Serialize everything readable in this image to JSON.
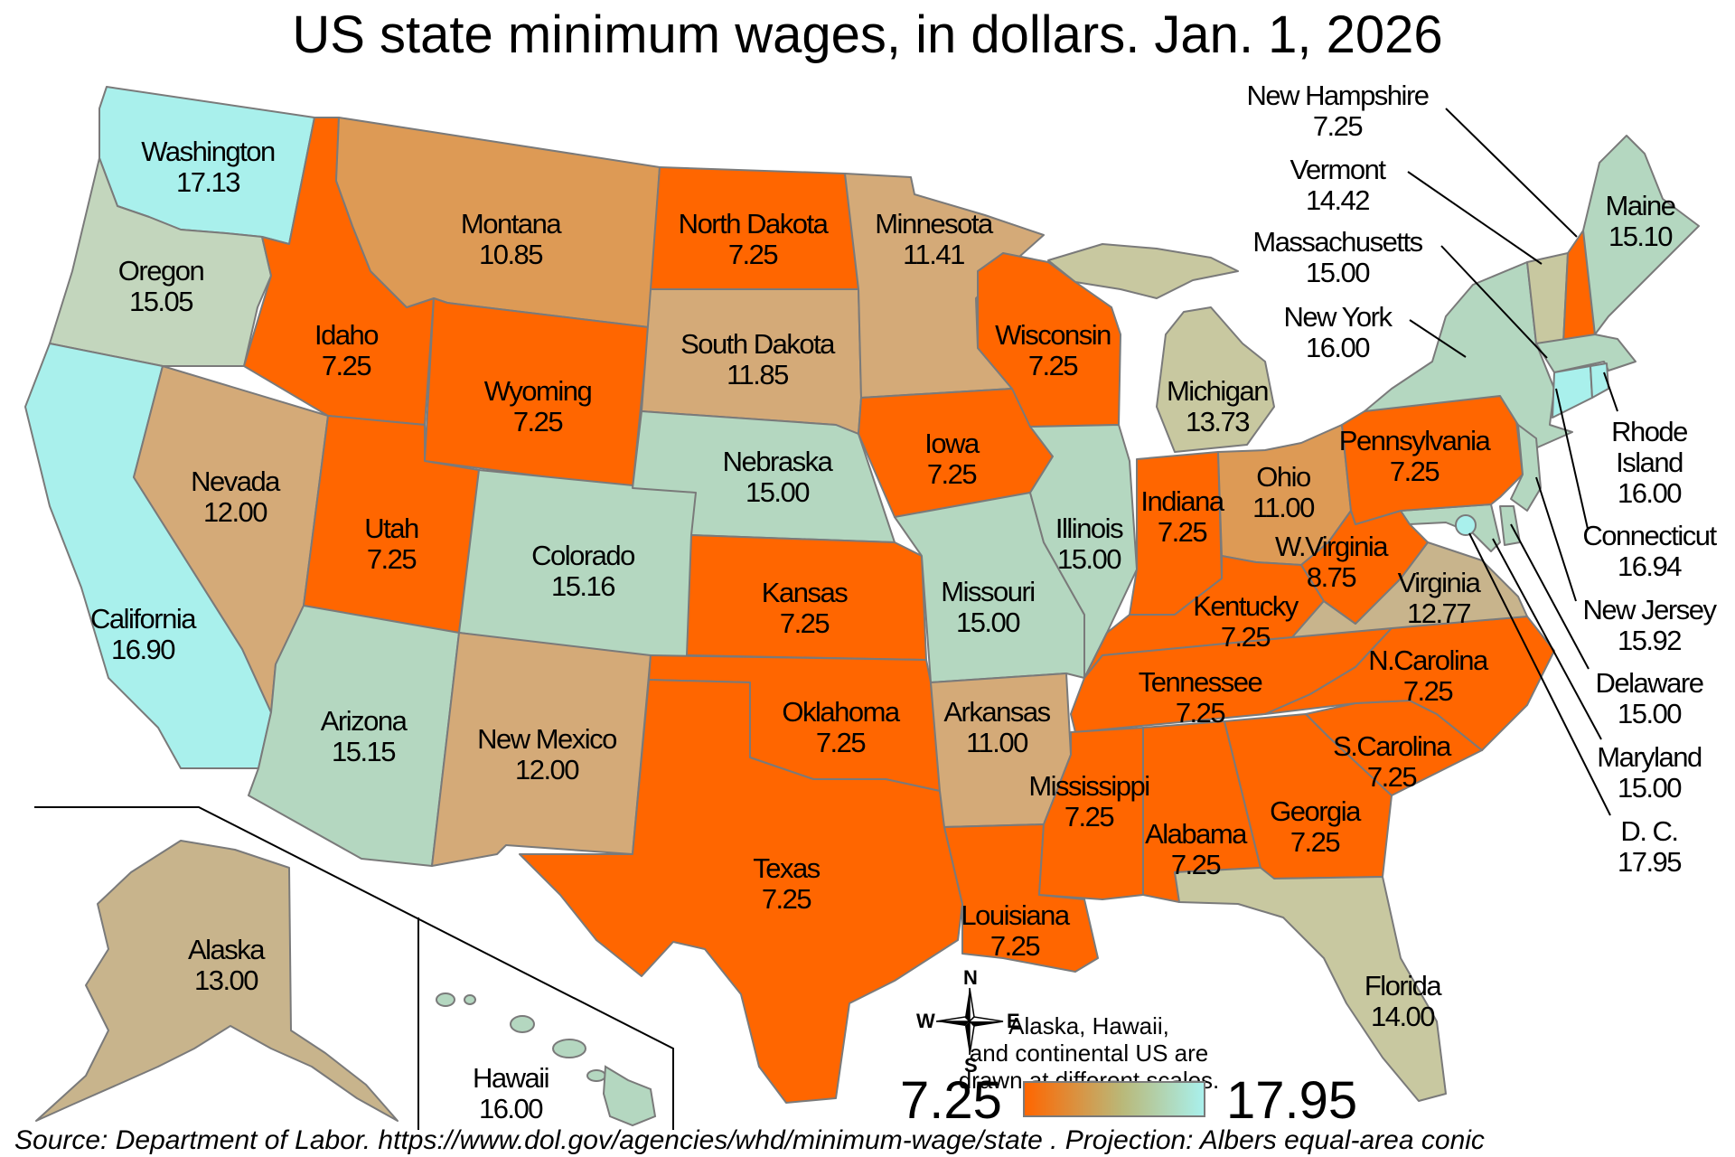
{
  "title": "US state minimum wages, in dollars. Jan. 1, 2026",
  "colors": {
    "federal_minimum": "#ff6600",
    "tier_low": "#dd9a55",
    "tier_mid": "#d4aa78",
    "tier_tan": "#c8b48c",
    "tier_sage": "#c8c8a0",
    "tier_mint": "#b4d7c0",
    "tier_aqua": "#a9f0ec",
    "border": "#7a7a7a"
  },
  "states": [
    {
      "name": "Washington",
      "wage": "17.13"
    },
    {
      "name": "Oregon",
      "wage": "15.05"
    },
    {
      "name": "California",
      "wage": "16.90"
    },
    {
      "name": "Nevada",
      "wage": "12.00"
    },
    {
      "name": "Idaho",
      "wage": "7.25"
    },
    {
      "name": "Montana",
      "wage": "10.85"
    },
    {
      "name": "Wyoming",
      "wage": "7.25"
    },
    {
      "name": "Utah",
      "wage": "7.25"
    },
    {
      "name": "Arizona",
      "wage": "15.15"
    },
    {
      "name": "Colorado",
      "wage": "15.16"
    },
    {
      "name": "New Mexico",
      "wage": "12.00"
    },
    {
      "name": "North Dakota",
      "wage": "7.25"
    },
    {
      "name": "South Dakota",
      "wage": "11.85"
    },
    {
      "name": "Nebraska",
      "wage": "15.00"
    },
    {
      "name": "Kansas",
      "wage": "7.25"
    },
    {
      "name": "Oklahoma",
      "wage": "7.25"
    },
    {
      "name": "Texas",
      "wage": "7.25"
    },
    {
      "name": "Minnesota",
      "wage": "11.41"
    },
    {
      "name": "Iowa",
      "wage": "7.25"
    },
    {
      "name": "Missouri",
      "wage": "15.00"
    },
    {
      "name": "Arkansas",
      "wage": "11.00"
    },
    {
      "name": "Louisiana",
      "wage": "7.25"
    },
    {
      "name": "Wisconsin",
      "wage": "7.25"
    },
    {
      "name": "Illinois",
      "wage": "15.00"
    },
    {
      "name": "Michigan",
      "wage": "13.73"
    },
    {
      "name": "Indiana",
      "wage": "7.25"
    },
    {
      "name": "Ohio",
      "wage": "11.00"
    },
    {
      "name": "Kentucky",
      "wage": "7.25"
    },
    {
      "name": "Tennessee",
      "wage": "7.25"
    },
    {
      "name": "Mississippi",
      "wage": "7.25"
    },
    {
      "name": "Alabama",
      "wage": "7.25"
    },
    {
      "name": "Georgia",
      "wage": "7.25"
    },
    {
      "name": "Florida",
      "wage": "14.00"
    },
    {
      "name": "S.Carolina",
      "wage": "7.25"
    },
    {
      "name": "N.Carolina",
      "wage": "7.25"
    },
    {
      "name": "Virginia",
      "wage": "12.77"
    },
    {
      "name": "W.Virginia",
      "wage": "8.75"
    },
    {
      "name": "Pennsylvania",
      "wage": "7.25"
    },
    {
      "name": "New York",
      "wage": "16.00"
    },
    {
      "name": "Vermont",
      "wage": "14.42"
    },
    {
      "name": "New Hampshire",
      "wage": "7.25"
    },
    {
      "name": "Maine",
      "wage": "15.10"
    },
    {
      "name": "Massachusetts",
      "wage": "15.00"
    },
    {
      "name": "Rhode Island",
      "wage": "16.00"
    },
    {
      "name": "Connecticut",
      "wage": "16.94"
    },
    {
      "name": "New Jersey",
      "wage": "15.92"
    },
    {
      "name": "Delaware",
      "wage": "15.00"
    },
    {
      "name": "Maryland",
      "wage": "15.00"
    },
    {
      "name": "D. C.",
      "wage": "17.95"
    },
    {
      "name": "Alaska",
      "wage": "13.00"
    },
    {
      "name": "Hawaii",
      "wage": "16.00"
    }
  ],
  "legend": {
    "min_label": "7.25",
    "max_label": "17.95"
  },
  "compass": {
    "n": "N",
    "s": "S",
    "e": "E",
    "w": "W"
  },
  "note": [
    "Alaska, Hawaii,",
    "and continental US are",
    "drawn at different scales."
  ],
  "source": "Source: Department of Labor. https://www.dol.gov/agencies/whd/minimum-wage/state . Projection: Albers equal-area conic"
}
